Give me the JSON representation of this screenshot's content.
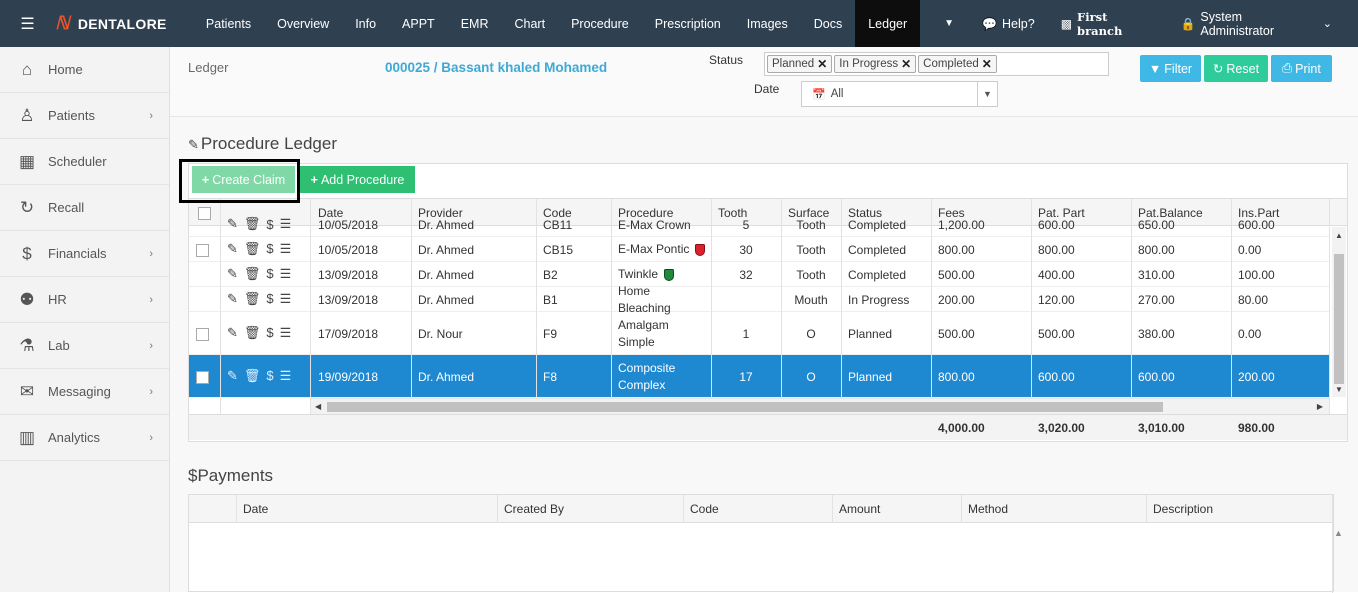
{
  "app": {
    "brand": "DENTALORE"
  },
  "nav": {
    "items": [
      "Patients",
      "Overview",
      "Info",
      "APPT",
      "EMR",
      "Chart",
      "Procedure",
      "Prescription",
      "Images",
      "Docs",
      "Ledger"
    ],
    "active": "Ledger",
    "help": "Help?",
    "branch": "First branch",
    "user": "System Administrator"
  },
  "sidebar": {
    "items": [
      {
        "label": "Home",
        "icon": "home-icon",
        "chevron": false
      },
      {
        "label": "Patients",
        "icon": "user-icon",
        "chevron": true
      },
      {
        "label": "Scheduler",
        "icon": "calendar-icon",
        "chevron": false
      },
      {
        "label": "Recall",
        "icon": "refresh-icon",
        "chevron": false
      },
      {
        "label": "Financials",
        "icon": "dollar-icon",
        "chevron": true
      },
      {
        "label": "HR",
        "icon": "users-icon",
        "chevron": true
      },
      {
        "label": "Lab",
        "icon": "flask-icon",
        "chevron": true
      },
      {
        "label": "Messaging",
        "icon": "envelope-icon",
        "chevron": true
      },
      {
        "label": "Analytics",
        "icon": "bar-chart-icon",
        "chevron": true
      }
    ]
  },
  "header": {
    "breadcrumb": "Ledger",
    "patient": "000025 / Bassant khaled Mohamed",
    "status_label": "Status",
    "status_tags": [
      "Planned",
      "In Progress",
      "Completed"
    ],
    "date_label": "Date",
    "date_value": "All",
    "filter": "Filter",
    "reset": "Reset",
    "print": "Print"
  },
  "procedure_ledger": {
    "title": "Procedure Ledger",
    "create_claim": "Create Claim",
    "add_procedure": "Add Procedure",
    "columns": [
      "Date",
      "Provider",
      "Code",
      "Procedure",
      "Tooth",
      "Surface",
      "Status",
      "Fees",
      "Pat. Part",
      "Pat.Balance",
      "Ins.Part"
    ],
    "partial_row": [
      "10/05/2018",
      "Dr. Ahmed",
      "CB11",
      "E-Max Crown",
      "5",
      "Tooth",
      "Completed",
      "1,200.00",
      "600.00",
      "650.00",
      "600.00"
    ],
    "rows": [
      {
        "cells": [
          "10/05/2018",
          "Dr. Ahmed",
          "CB15",
          "E-Max Pontic",
          "30",
          "Tooth",
          "Completed",
          "800.00",
          "800.00",
          "800.00",
          "0.00"
        ],
        "checkbox": true,
        "shield": "red",
        "selected": false,
        "tall": false
      },
      {
        "cells": [
          "13/09/2018",
          "Dr. Ahmed",
          "B2",
          "Twinkle",
          "32",
          "Tooth",
          "Completed",
          "500.00",
          "400.00",
          "310.00",
          "100.00"
        ],
        "checkbox": false,
        "shield": "green",
        "selected": false,
        "tall": false
      },
      {
        "cells": [
          "13/09/2018",
          "Dr. Ahmed",
          "B1",
          "Home Bleaching",
          "",
          "Mouth",
          "In Progress",
          "200.00",
          "120.00",
          "270.00",
          "80.00"
        ],
        "checkbox": false,
        "shield": "",
        "selected": false,
        "tall": false
      },
      {
        "cells": [
          "17/09/2018",
          "Dr. Nour",
          "F9",
          "Amalgam Simple",
          "1",
          "O",
          "Planned",
          "500.00",
          "500.00",
          "380.00",
          "0.00"
        ],
        "checkbox": true,
        "shield": "",
        "selected": false,
        "tall": true
      },
      {
        "cells": [
          "19/09/2018",
          "Dr. Ahmed",
          "F8",
          "Composite Complex",
          "17",
          "O",
          "Planned",
          "800.00",
          "600.00",
          "600.00",
          "200.00"
        ],
        "checkbox": true,
        "shield": "",
        "selected": true,
        "tall": true
      }
    ],
    "totals": {
      "fees": "4,000.00",
      "pat_part": "3,020.00",
      "pat_balance": "3,010.00",
      "ins_part": "980.00"
    }
  },
  "payments": {
    "title": "Payments",
    "columns": [
      "Date",
      "Created By",
      "Code",
      "Amount",
      "Method",
      "Description"
    ]
  }
}
